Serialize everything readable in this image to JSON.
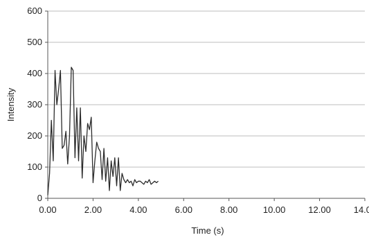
{
  "chart_data": {
    "type": "line",
    "title": "",
    "xlabel": "Time (s)",
    "ylabel": "Intensity",
    "xlim": [
      0,
      14
    ],
    "ylim": [
      0,
      600
    ],
    "grid": true,
    "legend": "none",
    "x_ticks": [
      {
        "value": 0,
        "label": "0.00"
      },
      {
        "value": 2,
        "label": "2.00"
      },
      {
        "value": 4,
        "label": "4.00"
      },
      {
        "value": 6,
        "label": "6.00"
      },
      {
        "value": 8,
        "label": "8.00"
      },
      {
        "value": 10,
        "label": "10.00"
      },
      {
        "value": 12,
        "label": "12.00"
      },
      {
        "value": 14,
        "label": "14.00"
      }
    ],
    "y_ticks": [
      {
        "value": 0,
        "label": "0"
      },
      {
        "value": 100,
        "label": "100"
      },
      {
        "value": 200,
        "label": "200"
      },
      {
        "value": 300,
        "label": "300"
      },
      {
        "value": 400,
        "label": "400"
      },
      {
        "value": 500,
        "label": "500"
      },
      {
        "value": 600,
        "label": "600"
      }
    ],
    "colors": {
      "line": "#2b2b2b",
      "grid": "#bdbdbd",
      "axis": "#555555"
    },
    "series": [
      {
        "x": [
          0.0,
          0.08,
          0.16,
          0.24,
          0.32,
          0.4,
          0.48,
          0.56,
          0.64,
          0.72,
          0.8,
          0.88,
          0.96,
          1.04,
          1.12,
          1.2,
          1.28,
          1.36,
          1.44,
          1.52,
          1.6,
          1.68,
          1.76,
          1.84,
          1.92,
          2.0,
          2.08,
          2.16,
          2.24,
          2.32,
          2.4,
          2.48,
          2.56,
          2.64,
          2.72,
          2.8,
          2.88,
          2.96,
          3.04,
          3.12,
          3.2,
          3.28,
          3.36,
          3.44,
          3.52,
          3.6,
          3.68,
          3.76,
          3.84,
          3.92,
          4.0,
          4.08,
          4.16,
          4.24,
          4.32,
          4.4,
          4.48,
          4.56,
          4.64,
          4.72,
          4.8,
          4.88
        ],
        "values": [
          10,
          80,
          250,
          120,
          410,
          300,
          350,
          410,
          160,
          170,
          215,
          110,
          200,
          420,
          410,
          130,
          290,
          120,
          290,
          65,
          200,
          150,
          240,
          220,
          260,
          50,
          120,
          180,
          160,
          150,
          60,
          160,
          55,
          130,
          25,
          120,
          70,
          130,
          40,
          130,
          25,
          80,
          60,
          50,
          60,
          50,
          55,
          40,
          60,
          50,
          55,
          55,
          50,
          45,
          55,
          50,
          60,
          45,
          50,
          55,
          50,
          55
        ]
      }
    ]
  }
}
